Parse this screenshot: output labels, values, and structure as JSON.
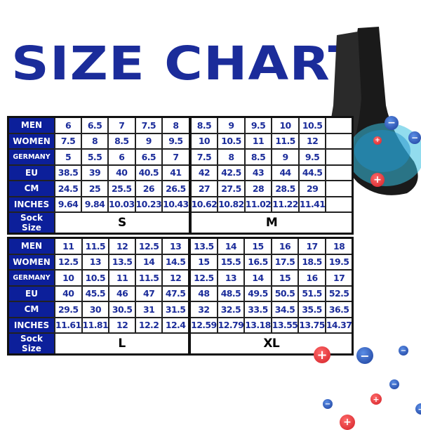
{
  "title": "SIZE CHART",
  "colors": {
    "title": "#1b2c9a",
    "label_bg": "#0c1f9a",
    "value_text": "#1b2c9a"
  },
  "tables": [
    {
      "rows": [
        {
          "label": "MEN",
          "values": [
            "6",
            "6.5",
            "7",
            "7.5",
            "8",
            "8.5",
            "9",
            "9.5",
            "10",
            "10.5",
            ""
          ]
        },
        {
          "label": "WOMEN",
          "values": [
            "7.5",
            "8",
            "8.5",
            "9",
            "9.5",
            "10",
            "10.5",
            "11",
            "11.5",
            "12",
            ""
          ]
        },
        {
          "label": "GERMANY",
          "values": [
            "5",
            "5.5",
            "6",
            "6.5",
            "7",
            "7.5",
            "8",
            "8.5",
            "9",
            "9.5",
            ""
          ]
        },
        {
          "label": "EU",
          "values": [
            "38.5",
            "39",
            "40",
            "40.5",
            "41",
            "42",
            "42.5",
            "43",
            "44",
            "44.5",
            ""
          ]
        },
        {
          "label": "CM",
          "values": [
            "24.5",
            "25",
            "25.5",
            "26",
            "26.5",
            "27",
            "27.5",
            "28",
            "28.5",
            "29",
            ""
          ]
        },
        {
          "label": "INCHES",
          "values": [
            "9.64",
            "9.84",
            "10.03",
            "10.23",
            "10.43",
            "10.62",
            "10.82",
            "11.02",
            "11.22",
            "11.41",
            ""
          ]
        }
      ],
      "sock_size_label": "Sock Size",
      "sock_sizes": [
        "S",
        "M"
      ]
    },
    {
      "rows": [
        {
          "label": "MEN",
          "values": [
            "11",
            "11.5",
            "12",
            "12.5",
            "13",
            "13.5",
            "14",
            "15",
            "16",
            "17",
            "18"
          ]
        },
        {
          "label": "WOMEN",
          "values": [
            "12.5",
            "13",
            "13.5",
            "14",
            "14.5",
            "15",
            "15.5",
            "16.5",
            "17.5",
            "18.5",
            "19.5"
          ]
        },
        {
          "label": "GERMANY",
          "values": [
            "10",
            "10.5",
            "11",
            "11.5",
            "12",
            "12.5",
            "13",
            "14",
            "15",
            "16",
            "17"
          ]
        },
        {
          "label": "EU",
          "values": [
            "40",
            "45.5",
            "46",
            "47",
            "47.5",
            "48",
            "48.5",
            "49.5",
            "50.5",
            "51.5",
            "52.5"
          ]
        },
        {
          "label": "CM",
          "values": [
            "29.5",
            "30",
            "30.5",
            "31",
            "31.5",
            "32",
            "32.5",
            "33.5",
            "34.5",
            "35.5",
            "36.5"
          ]
        },
        {
          "label": "INCHES",
          "values": [
            "11.61",
            "11.81",
            "12",
            "12.2",
            "12.4",
            "12.59",
            "12.79",
            "13.18",
            "13.55",
            "13.75",
            "14.37"
          ]
        }
      ],
      "sock_size_label": "Sock Size",
      "sock_sizes": [
        "L",
        "XL"
      ]
    }
  ],
  "decor": {
    "plus": "+",
    "minus": "−"
  }
}
